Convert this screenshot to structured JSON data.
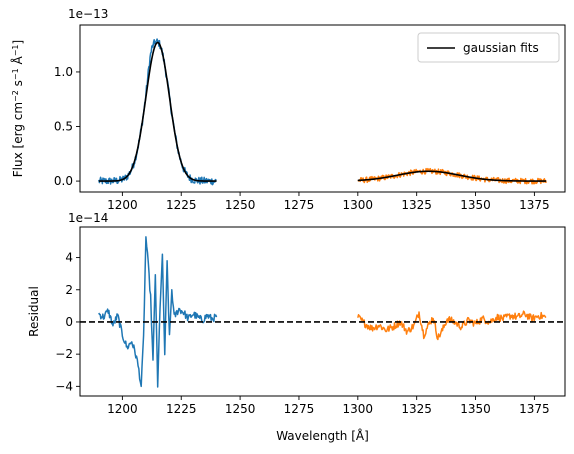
{
  "colors": {
    "series1": "#1f77b4",
    "series2": "#ff7f0e",
    "fit": "#000000",
    "zero_line": "#000000"
  },
  "chart_data": [
    {
      "type": "line",
      "panel": "top",
      "ylabel": "Flux [erg cm$^{-2}$ s$^{-1}$ Å$^{-1}$]",
      "ylabel_parts": {
        "base": "Flux [erg cm",
        "exp1": "−2",
        "mid1": " s",
        "exp2": "−1",
        "mid2": " Å",
        "exp3": "−1",
        "tail": "]"
      },
      "offset_text": "1e−13",
      "xlim": [
        1182,
        1388
      ],
      "ylim": [
        -0.1,
        1.43
      ],
      "xticks": [
        1200,
        1225,
        1250,
        1275,
        1300,
        1325,
        1350,
        1375
      ],
      "xtick_labels": [
        "1200",
        "1225",
        "1250",
        "1275",
        "1300",
        "1325",
        "1350",
        "1375"
      ],
      "yticks": [
        0.0,
        0.5,
        1.0
      ],
      "ytick_labels": [
        "0.0",
        "0.5",
        "1.0"
      ],
      "legend": {
        "entries": [
          "gaussian fits"
        ],
        "position": "upper-right"
      },
      "series": [
        {
          "x_range": [
            1190,
            1240
          ],
          "gaussian": {
            "amp": 1.27,
            "center": 1215,
            "sigma": 5.0
          },
          "noise": 0.035,
          "extra_spike": [
            1212,
            0.1
          ]
        },
        {
          "x_range": [
            1300,
            1380
          ],
          "gaussian": {
            "amp": 0.09,
            "center": 1330,
            "sigma": 13.0
          },
          "noise": 0.025
        }
      ],
      "fits": [
        {
          "x_range": [
            1190,
            1240
          ],
          "amp": 1.27,
          "center": 1215,
          "sigma": 5.0
        },
        {
          "x_range": [
            1300,
            1380
          ],
          "amp": 0.09,
          "center": 1330,
          "sigma": 13.0
        }
      ]
    },
    {
      "type": "line",
      "panel": "bottom",
      "ylabel": "Residual",
      "xlabel": "Wavelength [Å]",
      "offset_text": "1e−14",
      "xlim": [
        1182,
        1388
      ],
      "ylim": [
        -4.6,
        5.9
      ],
      "xticks": [
        1200,
        1225,
        1250,
        1275,
        1300,
        1325,
        1350,
        1375
      ],
      "xtick_labels": [
        "1200",
        "1225",
        "1250",
        "1275",
        "1300",
        "1325",
        "1350",
        "1375"
      ],
      "yticks": [
        -4,
        -2,
        0,
        2,
        4
      ],
      "ytick_labels": [
        "−4",
        "−2",
        "0",
        "2",
        "4"
      ],
      "zero_line": 0,
      "series": [
        {
          "x": [
            1190,
            1192,
            1194,
            1196,
            1198,
            1200,
            1202,
            1204,
            1206,
            1207,
            1208,
            1209,
            1210,
            1211,
            1212,
            1213,
            1214,
            1215,
            1216,
            1217,
            1218,
            1219,
            1220,
            1221,
            1222,
            1224,
            1226,
            1228,
            1230,
            1232,
            1234,
            1236,
            1238,
            1240
          ],
          "y": [
            0.5,
            0.3,
            0.7,
            -0.2,
            0.4,
            -0.8,
            -1.6,
            -1.2,
            -2.2,
            -3.0,
            -4.0,
            -1.0,
            5.3,
            3.5,
            1.5,
            -2.5,
            3.0,
            -4.1,
            1.0,
            4.0,
            -2.0,
            3.7,
            -1.0,
            2.0,
            0.3,
            0.8,
            0.6,
            0.2,
            0.5,
            0.3,
            0.1,
            0.4,
            0.2,
            0.3
          ]
        },
        {
          "x": [
            1300,
            1303,
            1306,
            1309,
            1312,
            1315,
            1318,
            1321,
            1324,
            1326,
            1328,
            1330,
            1332,
            1334,
            1336,
            1338,
            1341,
            1344,
            1347,
            1350,
            1353,
            1356,
            1359,
            1362,
            1365,
            1368,
            1371,
            1374,
            1377,
            1380
          ],
          "y": [
            0.3,
            -0.1,
            -0.4,
            -0.2,
            -0.5,
            -0.3,
            0.0,
            -0.6,
            -0.2,
            0.6,
            -0.8,
            -0.2,
            0.3,
            -1.0,
            -0.5,
            0.2,
            0.0,
            -0.3,
            0.1,
            -0.1,
            0.2,
            0.0,
            0.3,
            0.2,
            0.4,
            0.3,
            0.5,
            0.2,
            0.4,
            0.3
          ]
        }
      ]
    }
  ]
}
